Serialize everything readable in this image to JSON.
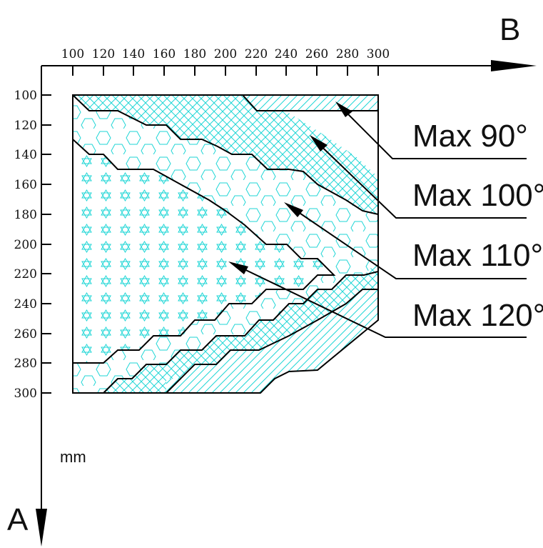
{
  "axes": {
    "horizontal_letter": "B",
    "vertical_letter": "A",
    "unit": "mm",
    "x_ticks": [
      "100",
      "120",
      "140",
      "160",
      "180",
      "200",
      "220",
      "240",
      "260",
      "280",
      "300"
    ],
    "y_ticks": [
      "100",
      "120",
      "140",
      "160",
      "180",
      "200",
      "220",
      "240",
      "260",
      "280",
      "300"
    ]
  },
  "zones": [
    {
      "id": "z90",
      "label": "Max 90°"
    },
    {
      "id": "z100",
      "label": "Max 100°"
    },
    {
      "id": "z110",
      "label": "Max 110°"
    },
    {
      "id": "z120",
      "label": "Max 120°"
    }
  ],
  "colors": {
    "hatch": "#1fd6d6",
    "line": "#000000"
  }
}
